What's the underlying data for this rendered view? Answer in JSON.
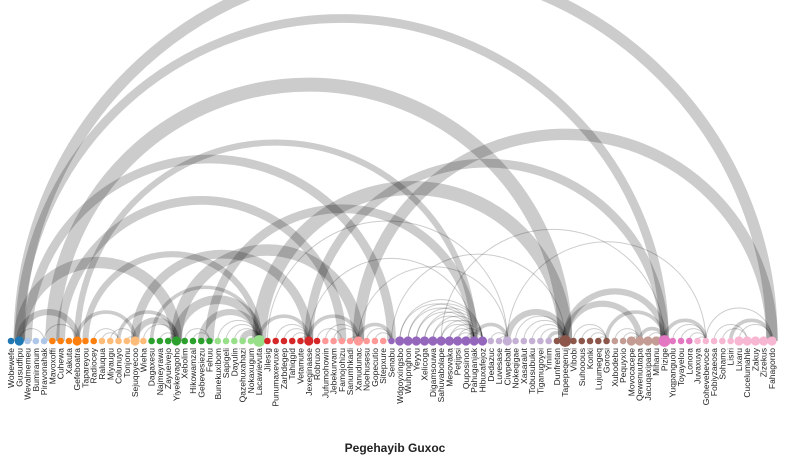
{
  "title": "Pegehayib Guxoc",
  "nodes": [
    {
      "label": "Wobewefe",
      "color": "#1f77b4",
      "size": 1
    },
    {
      "label": "Gusudfipu",
      "color": "#1f77b4",
      "size": 2
    },
    {
      "label": "Wevalmemeu",
      "color": "#aec7e8",
      "size": 1
    },
    {
      "label": "Bumiranum",
      "color": "#aec7e8",
      "size": 1
    },
    {
      "label": "Piravonahak",
      "color": "#aec7e8",
      "size": 1
    },
    {
      "label": "Mavoxoffi",
      "color": "#ff7f0e",
      "size": 1
    },
    {
      "label": "Cuhewa",
      "color": "#ff7f0e",
      "size": 1
    },
    {
      "label": "Xakuta",
      "color": "#ff7f0e",
      "size": 1
    },
    {
      "label": "Gefeboatra",
      "color": "#ff7f0e",
      "size": 2
    },
    {
      "label": "Tapareyou",
      "color": "#ff7f0e",
      "size": 1
    },
    {
      "label": "Radiocey",
      "color": "#ff7f0e",
      "size": 1
    },
    {
      "label": "Raluqua",
      "color": "#ffbb78",
      "size": 1
    },
    {
      "label": "Miyaugu",
      "color": "#ffbb78",
      "size": 1
    },
    {
      "label": "Colunuyo",
      "color": "#ffbb78",
      "size": 1
    },
    {
      "label": "Tonjonu",
      "color": "#ffbb78",
      "size": 1
    },
    {
      "label": "Sejuqoyecoo",
      "color": "#ffbb78",
      "size": 2
    },
    {
      "label": "Wieha",
      "color": "#ffbb78",
      "size": 1
    },
    {
      "label": "Dagaxesu",
      "color": "#2ca02c",
      "size": 1
    },
    {
      "label": "Najmeyrawa",
      "color": "#2ca02c",
      "size": 1
    },
    {
      "label": "Zayueivejo",
      "color": "#2ca02c",
      "size": 1
    },
    {
      "label": "Yiyekevagoho",
      "color": "#2ca02c",
      "size": 2
    },
    {
      "label": "Xebolim",
      "color": "#2ca02c",
      "size": 1
    },
    {
      "label": "Hikowamzal",
      "color": "#2ca02c",
      "size": 1
    },
    {
      "label": "Gebevesiezu",
      "color": "#2ca02c",
      "size": 1
    },
    {
      "label": "Fehuu",
      "color": "#2ca02c",
      "size": 1
    },
    {
      "label": "Bunekuxibom",
      "color": "#98df8a",
      "size": 1
    },
    {
      "label": "Sapigeli",
      "color": "#98df8a",
      "size": 1
    },
    {
      "label": "Dayulin",
      "color": "#98df8a",
      "size": 1
    },
    {
      "label": "Qazehuxahazi",
      "color": "#98df8a",
      "size": 1
    },
    {
      "label": "Nokaxugum",
      "color": "#98df8a",
      "size": 1
    },
    {
      "label": "Lacawievuta",
      "color": "#98df8a",
      "size": 3
    },
    {
      "label": "Jilesig",
      "color": "#d62728",
      "size": 1
    },
    {
      "label": "Punumaxevuxe",
      "color": "#d62728",
      "size": 1
    },
    {
      "label": "Zarbdegep",
      "color": "#d62728",
      "size": 1
    },
    {
      "label": "Tahiqgid",
      "color": "#d62728",
      "size": 1
    },
    {
      "label": "Vetamute",
      "color": "#d62728",
      "size": 1
    },
    {
      "label": "Jexeginaase",
      "color": "#d62728",
      "size": 2
    },
    {
      "label": "Robruxo",
      "color": "#d62728",
      "size": 1
    },
    {
      "label": "Jufumohowin",
      "color": "#ff9896",
      "size": 1
    },
    {
      "label": "Jebekurvam",
      "color": "#ff9896",
      "size": 1
    },
    {
      "label": "Famojohizu",
      "color": "#ff9896",
      "size": 1
    },
    {
      "label": "Sanumhkadi",
      "color": "#ff9896",
      "size": 1
    },
    {
      "label": "Xanudunac",
      "color": "#ff9896",
      "size": 2
    },
    {
      "label": "Noehusesu",
      "color": "#ff9896",
      "size": 1
    },
    {
      "label": "Gopecutio",
      "color": "#ff9896",
      "size": 1
    },
    {
      "label": "Sitepxure",
      "color": "#ff9896",
      "size": 1
    },
    {
      "label": "Senabu",
      "color": "#9467bd",
      "size": 1
    },
    {
      "label": "Wdgoyxingsbo",
      "color": "#9467bd",
      "size": 2
    },
    {
      "label": "Wuhpnghon",
      "color": "#9467bd",
      "size": 2
    },
    {
      "label": "Yeyyu",
      "color": "#9467bd",
      "size": 2
    },
    {
      "label": "Xelicoga",
      "color": "#9467bd",
      "size": 2
    },
    {
      "label": "Digamsouwa",
      "color": "#9467bd",
      "size": 2
    },
    {
      "label": "Sahuvabolape",
      "color": "#9467bd",
      "size": 2
    },
    {
      "label": "Mesovaka",
      "color": "#9467bd",
      "size": 2
    },
    {
      "label": "Petjipsi",
      "color": "#9467bd",
      "size": 2
    },
    {
      "label": "Quposinon",
      "color": "#9467bd",
      "size": 2
    },
    {
      "label": "Pahuganjak",
      "color": "#9467bd",
      "size": 2
    },
    {
      "label": "Hibuxafejoz",
      "color": "#9467bd",
      "size": 2
    },
    {
      "label": "Dedazuc",
      "color": "#c5b0d5",
      "size": 1
    },
    {
      "label": "Luvesase",
      "color": "#c5b0d5",
      "size": 1
    },
    {
      "label": "Ciwpebalt",
      "color": "#c5b0d5",
      "size": 2
    },
    {
      "label": "Nokeqigae",
      "color": "#c5b0d5",
      "size": 1
    },
    {
      "label": "Xasaralut",
      "color": "#c5b0d5",
      "size": 1
    },
    {
      "label": "Tobusubuku",
      "color": "#c5b0d5",
      "size": 1
    },
    {
      "label": "Tiganugoyei",
      "color": "#c5b0d5",
      "size": 1
    },
    {
      "label": "Yiniim",
      "color": "#c5b0d5",
      "size": 1
    },
    {
      "label": "Dunfretan",
      "color": "#8c564b",
      "size": 1
    },
    {
      "label": "Tapepeqenuj",
      "color": "#8c564b",
      "size": 3
    },
    {
      "label": "Vibobi",
      "color": "#8c564b",
      "size": 1
    },
    {
      "label": "Suhooous",
      "color": "#8c564b",
      "size": 1
    },
    {
      "label": "Konki",
      "color": "#8c564b",
      "size": 1
    },
    {
      "label": "Lujumegeq",
      "color": "#8c564b",
      "size": 1
    },
    {
      "label": "Gorosi",
      "color": "#8c564b",
      "size": 1
    },
    {
      "label": "Xubodebu",
      "color": "#c49c94",
      "size": 1
    },
    {
      "label": "Pequyxio",
      "color": "#c49c94",
      "size": 1
    },
    {
      "label": "Movocacepe",
      "color": "#c49c94",
      "size": 2
    },
    {
      "label": "Qewenuutapa",
      "color": "#c49c94",
      "size": 2
    },
    {
      "label": "Jacuqaxipada",
      "color": "#c49c94",
      "size": 2
    },
    {
      "label": "Mihanu",
      "color": "#c49c94",
      "size": 2
    },
    {
      "label": "Pizige",
      "color": "#e377c2",
      "size": 3
    },
    {
      "label": "Yuqpanguolu",
      "color": "#e377c2",
      "size": 1
    },
    {
      "label": "Toyayelou",
      "color": "#e377c2",
      "size": 1
    },
    {
      "label": "Lonora",
      "color": "#e377c2",
      "size": 1
    },
    {
      "label": "Juvaxuya",
      "color": "#f7b6d2",
      "size": 1
    },
    {
      "label": "Gohevebevoce",
      "color": "#f7b6d2",
      "size": 1
    },
    {
      "label": "Fobiyzaeosa",
      "color": "#f7b6d2",
      "size": 1
    },
    {
      "label": "Sohamo",
      "color": "#f7b6d2",
      "size": 1
    },
    {
      "label": "Lisiri",
      "color": "#f7b6d2",
      "size": 1
    },
    {
      "label": "Lixaru",
      "color": "#f7b6d2",
      "size": 2
    },
    {
      "label": "Cucelumahle",
      "color": "#f7b6d2",
      "size": 2
    },
    {
      "label": "Zakuy",
      "color": "#f7b6d2",
      "size": 2
    },
    {
      "label": "Zizekus",
      "color": "#f7b6d2",
      "size": 2
    },
    {
      "label": "Fahagordo",
      "color": "#f7b6d2",
      "size": 2
    }
  ],
  "links": [
    [
      1,
      92,
      5
    ],
    [
      1,
      79,
      4
    ],
    [
      5,
      67,
      6
    ],
    [
      8,
      56,
      3
    ],
    [
      2,
      46,
      4
    ],
    [
      6,
      40,
      4
    ],
    [
      1,
      20,
      5
    ],
    [
      9,
      30,
      3
    ],
    [
      15,
      36,
      4
    ],
    [
      20,
      42,
      5
    ],
    [
      24,
      56,
      4
    ],
    [
      30,
      67,
      6
    ],
    [
      36,
      79,
      4
    ],
    [
      42,
      92,
      5
    ],
    [
      8,
      15,
      2
    ],
    [
      1,
      8,
      3
    ],
    [
      15,
      20,
      3
    ],
    [
      20,
      30,
      4
    ],
    [
      13,
      20,
      2
    ],
    [
      17,
      30,
      2
    ],
    [
      23,
      30,
      3
    ],
    [
      28,
      30,
      3
    ],
    [
      30,
      36,
      2
    ],
    [
      33,
      36,
      1
    ],
    [
      36,
      42,
      2
    ],
    [
      38,
      42,
      1
    ],
    [
      42,
      46,
      2
    ],
    [
      56,
      60,
      2
    ],
    [
      60,
      67,
      3
    ],
    [
      65,
      67,
      2
    ],
    [
      67,
      76,
      3
    ],
    [
      67,
      79,
      3
    ],
    [
      72,
      79,
      2
    ],
    [
      76,
      79,
      2
    ],
    [
      79,
      84,
      2
    ],
    [
      84,
      92,
      1
    ],
    [
      87,
      92,
      2
    ],
    [
      89,
      93,
      2
    ],
    [
      91,
      93,
      1
    ],
    [
      46,
      67,
      1
    ],
    [
      60,
      84,
      1
    ],
    [
      52,
      79,
      1
    ],
    [
      42,
      60,
      1
    ],
    [
      31,
      60,
      1
    ],
    [
      36,
      56,
      1
    ],
    [
      47,
      56,
      1
    ],
    [
      48,
      56,
      1
    ],
    [
      49,
      56,
      1
    ],
    [
      50,
      56,
      1
    ],
    [
      51,
      56,
      1
    ],
    [
      52,
      56,
      1
    ],
    [
      53,
      56,
      1
    ],
    [
      54,
      56,
      1
    ],
    [
      55,
      56,
      1
    ],
    [
      47,
      57,
      1
    ],
    [
      48,
      57,
      1
    ],
    [
      49,
      57,
      1
    ],
    [
      50,
      57,
      1
    ],
    [
      51,
      57,
      1
    ],
    [
      52,
      57,
      1
    ],
    [
      53,
      57,
      1
    ],
    [
      54,
      57,
      1
    ],
    [
      55,
      57,
      1
    ],
    [
      1,
      4,
      1
    ],
    [
      4,
      8,
      1
    ],
    [
      10,
      13,
      1
    ],
    [
      11,
      13,
      1
    ],
    [
      12,
      15,
      1
    ],
    [
      14,
      15,
      1
    ],
    [
      16,
      20,
      1
    ],
    [
      18,
      20,
      1
    ],
    [
      19,
      20,
      1
    ],
    [
      21,
      24,
      1
    ],
    [
      22,
      24,
      1
    ],
    [
      25,
      30,
      1
    ],
    [
      26,
      30,
      1
    ],
    [
      27,
      30,
      1
    ],
    [
      29,
      30,
      1
    ],
    [
      32,
      36,
      1
    ],
    [
      34,
      36,
      1
    ],
    [
      35,
      36,
      1
    ],
    [
      37,
      40,
      1
    ],
    [
      39,
      42,
      1
    ],
    [
      41,
      42,
      1
    ],
    [
      43,
      46,
      1
    ],
    [
      44,
      46,
      1
    ],
    [
      58,
      60,
      1
    ],
    [
      59,
      60,
      1
    ],
    [
      61,
      67,
      1
    ],
    [
      62,
      67,
      1
    ],
    [
      63,
      67,
      1
    ],
    [
      64,
      67,
      1
    ],
    [
      66,
      67,
      1
    ],
    [
      68,
      72,
      1
    ],
    [
      69,
      72,
      1
    ],
    [
      70,
      72,
      1
    ],
    [
      71,
      72,
      1
    ],
    [
      73,
      76,
      1
    ],
    [
      74,
      76,
      1
    ],
    [
      75,
      76,
      1
    ],
    [
      77,
      79,
      1
    ],
    [
      78,
      79,
      1
    ],
    [
      80,
      84,
      1
    ],
    [
      81,
      84,
      1
    ],
    [
      82,
      84,
      1
    ],
    [
      83,
      84,
      1
    ],
    [
      85,
      89,
      1
    ],
    [
      86,
      89,
      1
    ],
    [
      88,
      92,
      1
    ],
    [
      90,
      93,
      1
    ]
  ]
}
